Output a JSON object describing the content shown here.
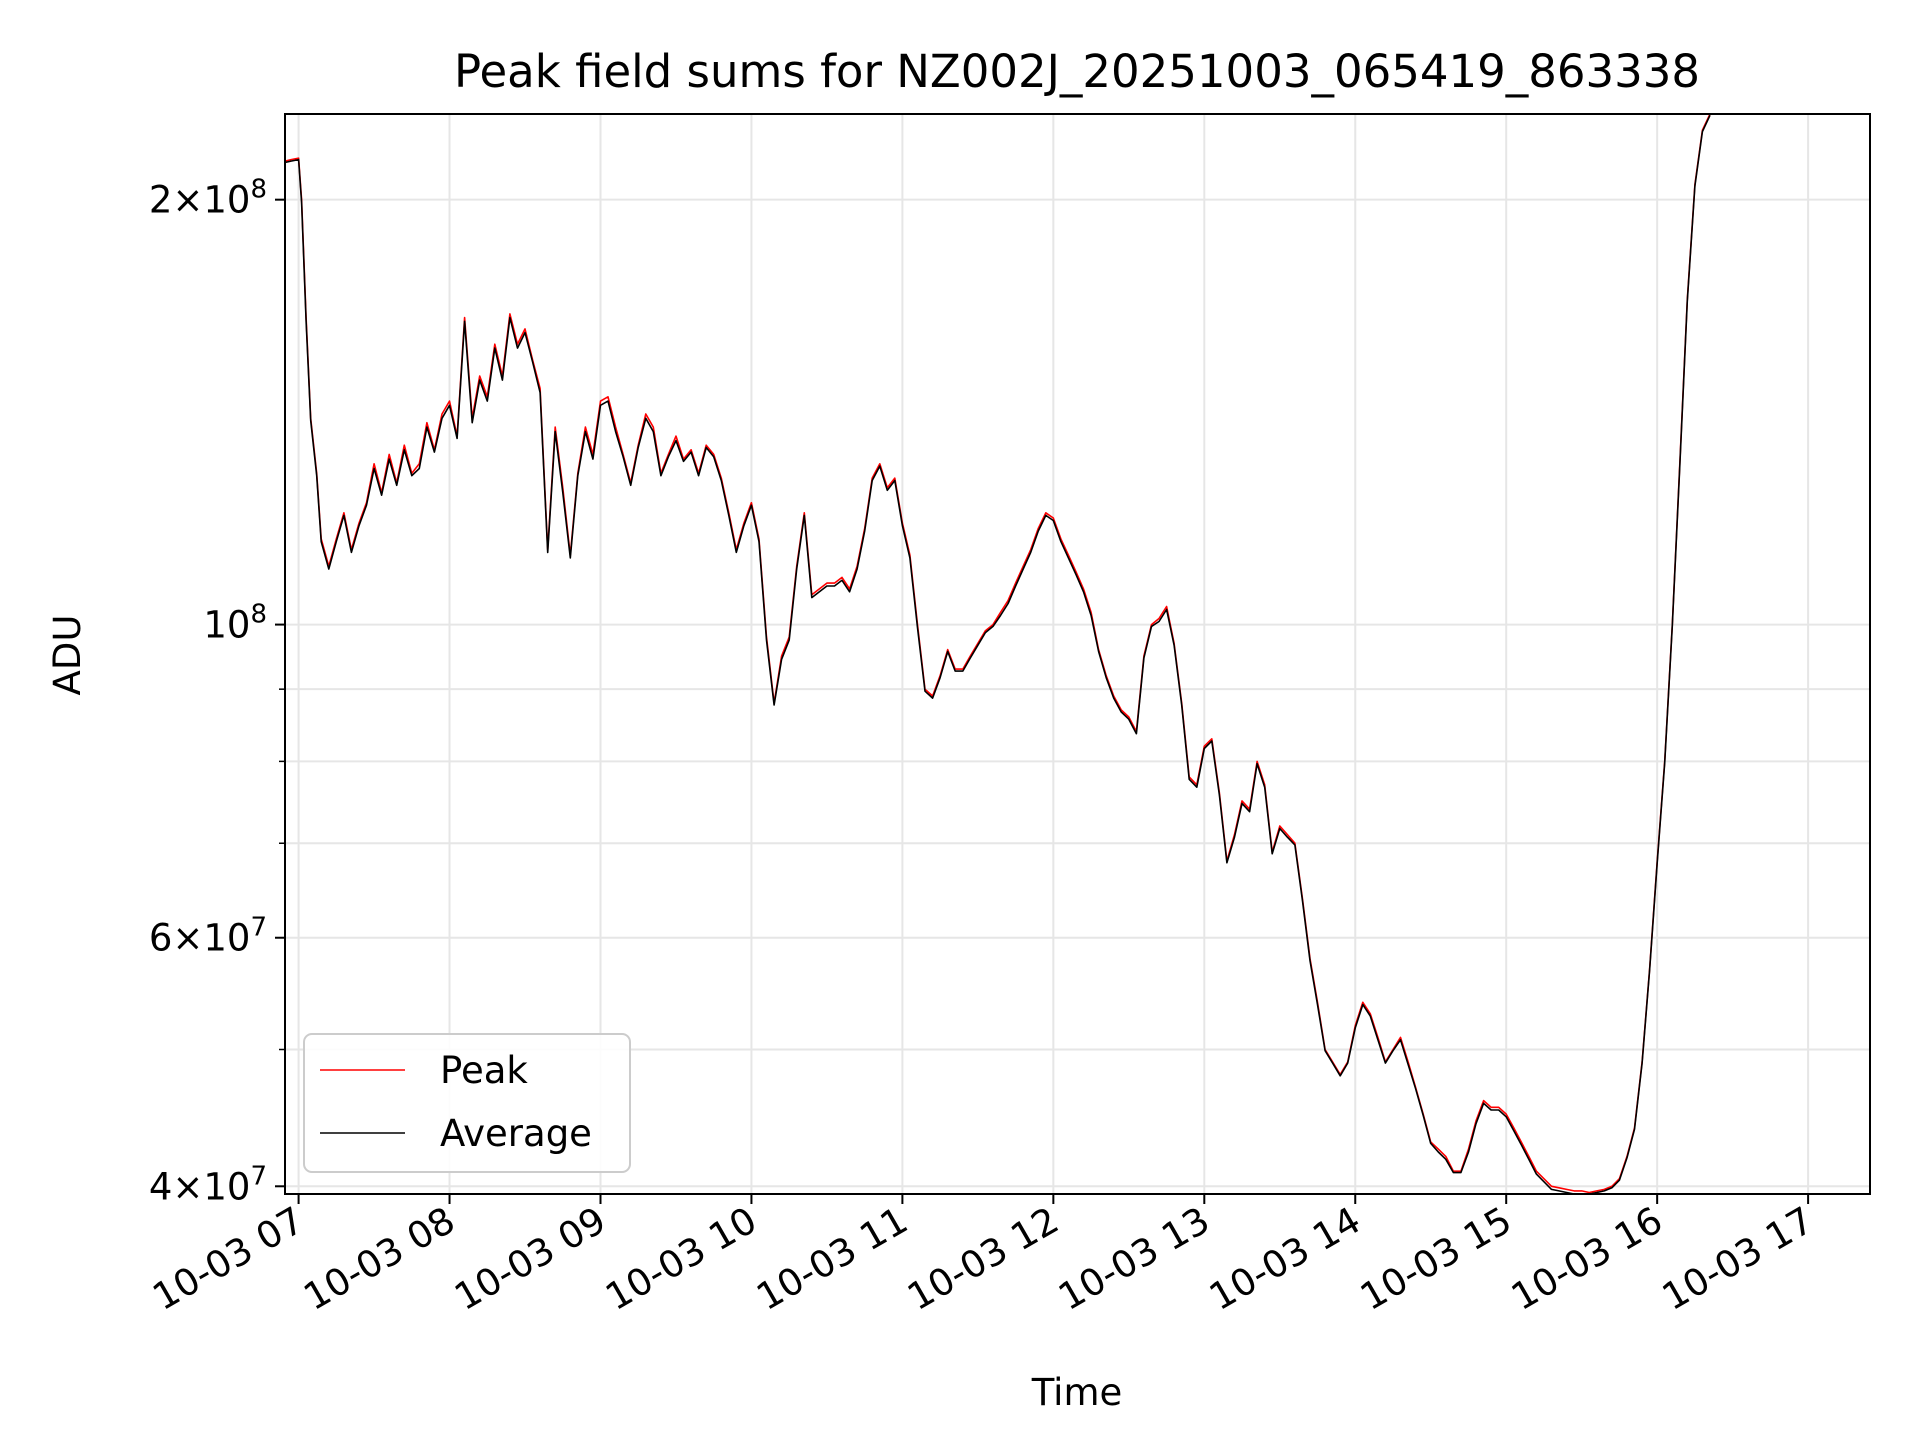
{
  "chart_data": {
    "type": "line",
    "title": "Peak field sums for NZ002J_20251003_065419_863338",
    "xlabel": "Time",
    "ylabel": "ADU",
    "yscale": "log",
    "ylim": [
      39500000,
      230000000
    ],
    "xlim_hours": [
      6.91,
      17.41
    ],
    "grid": true,
    "x_ticks": [
      {
        "hour": 7,
        "label": "10-03 07"
      },
      {
        "hour": 8,
        "label": "10-03 08"
      },
      {
        "hour": 9,
        "label": "10-03 09"
      },
      {
        "hour": 10,
        "label": "10-03 10"
      },
      {
        "hour": 11,
        "label": "10-03 11"
      },
      {
        "hour": 12,
        "label": "10-03 12"
      },
      {
        "hour": 13,
        "label": "10-03 13"
      },
      {
        "hour": 14,
        "label": "10-03 14"
      },
      {
        "hour": 15,
        "label": "10-03 15"
      },
      {
        "hour": 16,
        "label": "10-03 16"
      },
      {
        "hour": 17,
        "label": "10-03 17"
      }
    ],
    "y_major_ticks": [
      {
        "value": 40000000,
        "mantissa": "4",
        "exponent": "7"
      },
      {
        "value": 60000000,
        "mantissa": "6",
        "exponent": "7"
      },
      {
        "value": 100000000,
        "mantissa": "",
        "exponent": "8"
      },
      {
        "value": 200000000,
        "mantissa": "2",
        "exponent": "8"
      }
    ],
    "y_minor_ticks": [
      50000000,
      70000000,
      80000000,
      90000000
    ],
    "legend": {
      "position": "lower-left",
      "entries": [
        "Peak",
        "Average"
      ]
    },
    "x_hours": [
      6.91,
      6.95,
      7.0,
      7.02,
      7.05,
      7.08,
      7.12,
      7.15,
      7.2,
      7.25,
      7.3,
      7.35,
      7.4,
      7.45,
      7.5,
      7.55,
      7.6,
      7.65,
      7.7,
      7.75,
      7.8,
      7.85,
      7.9,
      7.95,
      8.0,
      8.05,
      8.1,
      8.15,
      8.2,
      8.25,
      8.3,
      8.35,
      8.4,
      8.45,
      8.5,
      8.55,
      8.6,
      8.65,
      8.7,
      8.75,
      8.8,
      8.85,
      8.9,
      8.95,
      9.0,
      9.05,
      9.1,
      9.15,
      9.2,
      9.25,
      9.3,
      9.35,
      9.4,
      9.45,
      9.5,
      9.55,
      9.6,
      9.65,
      9.7,
      9.75,
      9.8,
      9.85,
      9.9,
      9.95,
      10.0,
      10.05,
      10.1,
      10.15,
      10.2,
      10.25,
      10.3,
      10.35,
      10.4,
      10.45,
      10.5,
      10.55,
      10.6,
      10.65,
      10.7,
      10.75,
      10.8,
      10.85,
      10.9,
      10.95,
      11.0,
      11.05,
      11.1,
      11.15,
      11.2,
      11.25,
      11.3,
      11.35,
      11.4,
      11.45,
      11.5,
      11.55,
      11.6,
      11.65,
      11.7,
      11.75,
      11.8,
      11.85,
      11.9,
      11.95,
      12.0,
      12.05,
      12.1,
      12.15,
      12.2,
      12.25,
      12.3,
      12.35,
      12.4,
      12.45,
      12.5,
      12.55,
      12.6,
      12.65,
      12.7,
      12.75,
      12.8,
      12.85,
      12.9,
      12.95,
      13.0,
      13.05,
      13.1,
      13.15,
      13.2,
      13.25,
      13.3,
      13.35,
      13.4,
      13.45,
      13.5,
      13.55,
      13.6,
      13.65,
      13.7,
      13.75,
      13.8,
      13.85,
      13.9,
      13.95,
      14.0,
      14.05,
      14.1,
      14.15,
      14.2,
      14.25,
      14.3,
      14.35,
      14.4,
      14.45,
      14.5,
      14.55,
      14.6,
      14.65,
      14.7,
      14.75,
      14.8,
      14.85,
      14.9,
      14.95,
      15.0,
      15.05,
      15.1,
      15.15,
      15.2,
      15.25,
      15.3,
      15.35,
      15.4,
      15.45,
      15.5,
      15.55,
      15.6,
      15.65,
      15.7,
      15.75,
      15.8,
      15.85,
      15.9,
      15.95,
      16.0,
      16.05,
      16.1,
      16.15,
      16.2,
      16.25,
      16.3,
      16.35,
      16.4,
      16.45,
      16.5,
      16.55,
      16.6,
      16.65,
      16.7,
      16.75,
      16.8,
      16.85,
      16.9,
      16.95,
      17.0,
      17.05,
      17.1,
      17.15,
      17.2,
      17.25,
      17.3,
      17.35,
      17.41
    ],
    "series": [
      {
        "name": "Peak",
        "color": "#ff0000",
        "values": [
          213000000,
          213500000,
          214000000,
          200000000,
          165000000,
          140000000,
          128000000,
          115000000,
          110000000,
          115000000,
          120000000,
          113000000,
          118000000,
          122000000,
          130000000,
          124000000,
          132000000,
          126000000,
          134000000,
          128000000,
          130000000,
          139000000,
          133000000,
          141000000,
          144000000,
          136000000,
          165000000,
          140000000,
          150000000,
          145000000,
          158000000,
          150000000,
          166000000,
          158000000,
          162000000,
          154000000,
          147000000,
          113000000,
          138000000,
          125000000,
          112000000,
          128000000,
          138000000,
          132000000,
          144000000,
          145000000,
          138000000,
          132000000,
          126000000,
          134000000,
          141000000,
          138000000,
          128000000,
          132000000,
          136000000,
          131000000,
          133000000,
          128000000,
          134000000,
          132000000,
          127000000,
          120000000,
          113000000,
          118000000,
          122000000,
          115000000,
          98000000,
          88000000,
          95000000,
          98000000,
          110000000,
          120000000,
          105000000,
          106000000,
          107000000,
          107000000,
          108000000,
          106000000,
          110000000,
          117000000,
          127000000,
          130000000,
          125000000,
          127000000,
          118000000,
          112000000,
          100000000,
          90000000,
          89000000,
          92000000,
          96000000,
          93000000,
          93000000,
          95000000,
          97000000,
          99000000,
          100000000,
          102000000,
          104000000,
          107000000,
          110000000,
          113000000,
          117000000,
          120000000,
          119000000,
          115000000,
          112000000,
          109000000,
          106000000,
          102000000,
          96000000,
          92000000,
          89000000,
          87000000,
          86000000,
          84000000,
          95000000,
          100000000,
          101000000,
          103000000,
          97000000,
          88000000,
          78000000,
          77000000,
          82000000,
          83000000,
          76000000,
          68000000,
          71000000,
          75000000,
          74000000,
          80000000,
          77000000,
          69000000,
          72000000,
          71000000,
          70000000,
          64000000,
          58000000,
          54000000,
          50000000,
          49000000,
          48000000,
          49000000,
          52000000,
          54000000,
          53000000,
          51000000,
          49000000,
          50000000,
          51000000,
          49000000,
          47000000,
          45000000,
          43000000,
          42500000,
          42000000,
          41000000,
          41000000,
          42500000,
          44500000,
          46000000,
          45500000,
          45500000,
          45000000,
          44000000,
          43000000,
          42000000,
          41000000,
          40500000,
          40000000,
          39900000,
          39800000,
          39700000,
          39700000,
          39600000,
          39700000,
          39800000,
          40000000,
          40500000,
          42000000,
          44000000,
          49000000,
          57000000,
          68000000,
          80000000,
          100000000,
          130000000,
          170000000,
          205000000,
          224000000,
          230000000
        ]
      },
      {
        "name": "Average",
        "color": "#000000",
        "values": [
          212500000,
          213000000,
          213500000,
          199000000,
          164000000,
          139500000,
          127500000,
          114500000,
          109500000,
          114500000,
          119500000,
          112500000,
          117500000,
          121500000,
          129000000,
          123500000,
          131000000,
          125500000,
          133000000,
          127500000,
          129000000,
          138000000,
          132500000,
          140000000,
          143000000,
          135500000,
          164000000,
          139000000,
          149000000,
          144000000,
          157000000,
          149000000,
          165000000,
          157000000,
          161000000,
          153500000,
          146000000,
          112500000,
          137000000,
          124000000,
          111500000,
          127500000,
          137000000,
          131000000,
          143000000,
          144000000,
          137000000,
          131500000,
          125500000,
          133500000,
          140000000,
          137000000,
          127500000,
          131500000,
          135000000,
          130500000,
          132500000,
          127500000,
          133500000,
          131500000,
          126500000,
          119500000,
          112500000,
          117500000,
          121500000,
          114500000,
          97500000,
          87700000,
          94500000,
          97500000,
          109500000,
          119500000,
          104500000,
          105500000,
          106500000,
          106500000,
          107500000,
          105500000,
          109500000,
          116500000,
          126500000,
          129500000,
          124500000,
          126500000,
          117500000,
          111500000,
          99500000,
          89700000,
          88700000,
          91700000,
          95700000,
          92700000,
          92700000,
          94700000,
          96700000,
          98700000,
          99700000,
          101500000,
          103500000,
          106500000,
          109500000,
          112500000,
          116500000,
          119500000,
          118500000,
          114500000,
          111500000,
          108500000,
          105500000,
          101500000,
          95700000,
          91700000,
          88700000,
          86700000,
          85700000,
          83700000,
          94700000,
          99700000,
          100500000,
          102500000,
          96700000,
          87700000,
          77700000,
          76700000,
          81700000,
          82700000,
          75700000,
          67800000,
          70700000,
          74700000,
          73700000,
          79700000,
          76700000,
          68800000,
          71700000,
          70700000,
          69800000,
          63800000,
          57800000,
          53800000,
          49900000,
          48900000,
          47900000,
          48900000,
          51800000,
          53800000,
          52800000,
          50800000,
          48900000,
          49900000,
          50800000,
          48800000,
          46900000,
          44900000,
          42900000,
          42300000,
          41800000,
          40900000,
          40900000,
          42300000,
          44300000,
          45800000,
          45300000,
          45300000,
          44800000,
          43800000,
          42800000,
          41800000,
          40800000,
          40300000,
          39800000,
          39700000,
          39600000,
          39500000,
          39500000,
          39500000,
          39600000,
          39700000,
          39900000,
          40400000,
          41900000,
          43900000,
          48900000,
          56900000,
          67800000,
          79800000,
          99800000,
          129500000,
          169500000,
          204500000,
          223500000,
          229500000
        ]
      }
    ]
  }
}
